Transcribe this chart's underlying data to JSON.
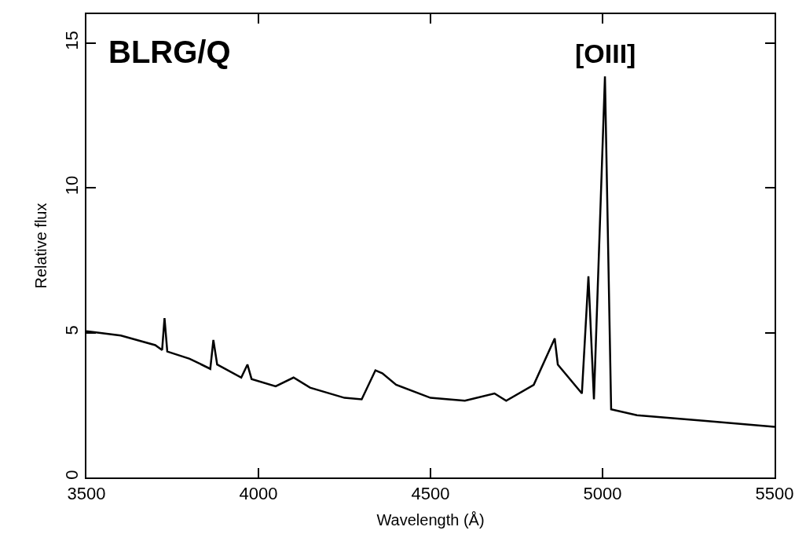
{
  "chart_data": {
    "type": "line",
    "xlabel": "Wavelength (Å)",
    "ylabel": "Relative flux",
    "x": [
      3500,
      3600,
      3700,
      3720,
      3727,
      3735,
      3800,
      3860,
      3869,
      3880,
      3950,
      3968,
      3980,
      4050,
      4102,
      4150,
      4250,
      4300,
      4340,
      4360,
      4400,
      4500,
      4600,
      4686,
      4720,
      4800,
      4861,
      4870,
      4940,
      4959,
      4975,
      5007,
      5025,
      5100,
      5300,
      5500
    ],
    "series": [
      {
        "color": "#000000",
        "values": [
          5.05,
          4.9,
          4.57,
          4.4,
          5.5,
          4.35,
          4.1,
          3.75,
          4.75,
          3.9,
          3.45,
          3.9,
          3.4,
          3.15,
          3.45,
          3.1,
          2.75,
          2.7,
          3.7,
          3.6,
          3.2,
          2.75,
          2.65,
          2.9,
          2.65,
          3.2,
          4.8,
          3.9,
          2.9,
          6.95,
          2.7,
          13.85,
          2.35,
          2.15,
          1.95,
          1.75
        ]
      }
    ],
    "annotations": [
      "BLRG/Q",
      {
        "text": "[OIII]",
        "x": 5007,
        "y": 13.85
      }
    ],
    "xlim": [
      3500,
      5500
    ],
    "xticks": [
      3500,
      4000,
      4500,
      5000,
      5500
    ],
    "ylim": [
      0,
      16
    ],
    "yticks": [
      0,
      5,
      10,
      15
    ],
    "marker": "none",
    "line_style": "solid"
  }
}
